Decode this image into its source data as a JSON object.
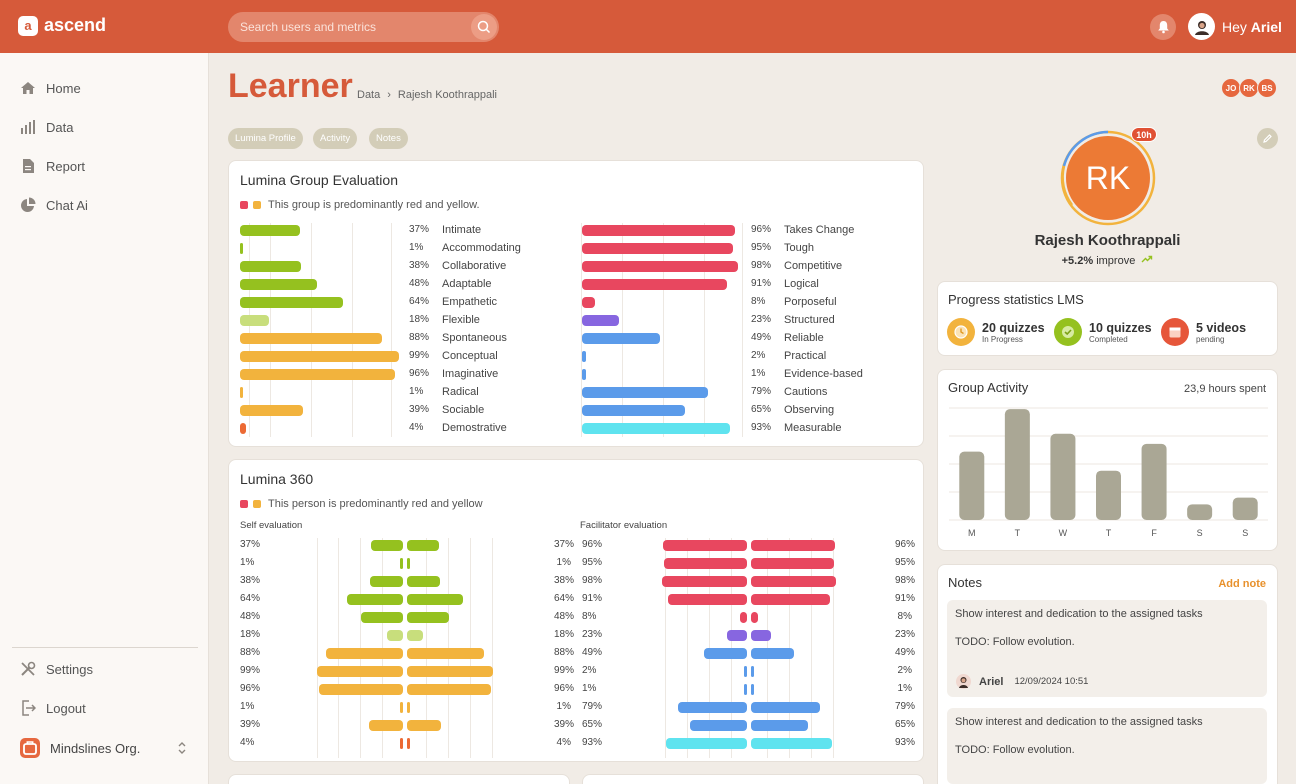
{
  "app": {
    "name": "ascend"
  },
  "search": {
    "placeholder": "Search users and metrics"
  },
  "header": {
    "greeting": "Hey",
    "user": "Ariel"
  },
  "nav": {
    "home": "Home",
    "data": "Data",
    "report": "Report",
    "chat": "Chat Ai",
    "settings": "Settings",
    "logout": "Logout",
    "org": "Mindslines Org."
  },
  "page": {
    "title": "Learner",
    "breadcrumb": [
      "Data",
      "Rajesh Koothrappali"
    ],
    "tabs": [
      "Lumina Profile",
      "Activity",
      "Notes"
    ],
    "collaborators": [
      "JO",
      "RK",
      "BS"
    ]
  },
  "colors": {
    "brand": "#d65a3a",
    "red": "#e8475f",
    "yellow": "#f2b33d",
    "green": "#95c11f",
    "blue": "#5b9bea",
    "purple": "#8766e0",
    "cyan": "#5fe3ef",
    "bar_gray": "#aaa795"
  },
  "group_eval": {
    "title": "Lumina Group Evaluation",
    "summary": "This group is predominantly red and yellow.",
    "left": [
      {
        "pct": 37,
        "label": "Intimate",
        "color": "green"
      },
      {
        "pct": 1,
        "label": "Accommodating",
        "color": "green"
      },
      {
        "pct": 38,
        "label": "Collaborative",
        "color": "green"
      },
      {
        "pct": 48,
        "label": "Adaptable",
        "color": "green"
      },
      {
        "pct": 64,
        "label": "Empathetic",
        "color": "green"
      },
      {
        "pct": 18,
        "label": "Flexible",
        "color": "lightgreen"
      },
      {
        "pct": 88,
        "label": "Spontaneous",
        "color": "yellow"
      },
      {
        "pct": 99,
        "label": "Conceptual",
        "color": "yellow"
      },
      {
        "pct": 96,
        "label": "Imaginative",
        "color": "yellow"
      },
      {
        "pct": 1,
        "label": "Radical",
        "color": "yellow"
      },
      {
        "pct": 39,
        "label": "Sociable",
        "color": "yellow"
      },
      {
        "pct": 4,
        "label": "Demostrative",
        "color": "orange"
      }
    ],
    "right": [
      {
        "pct": 96,
        "label": "Takes Change",
        "color": "red"
      },
      {
        "pct": 95,
        "label": "Tough",
        "color": "red"
      },
      {
        "pct": 98,
        "label": "Competitive",
        "color": "red"
      },
      {
        "pct": 91,
        "label": "Logical",
        "color": "red"
      },
      {
        "pct": 8,
        "label": "Porposeful",
        "color": "red"
      },
      {
        "pct": 23,
        "label": "Structured",
        "color": "purple"
      },
      {
        "pct": 49,
        "label": "Reliable",
        "color": "blue"
      },
      {
        "pct": 2,
        "label": "Practical",
        "color": "blue"
      },
      {
        "pct": 1,
        "label": "Evidence-based",
        "color": "blue"
      },
      {
        "pct": 79,
        "label": "Cautions",
        "color": "blue"
      },
      {
        "pct": 65,
        "label": "Observing",
        "color": "blue"
      },
      {
        "pct": 93,
        "label": "Measurable",
        "color": "cyan"
      }
    ]
  },
  "lumina360": {
    "title": "Lumina 360",
    "summary": "This person is predominantly red and yellow",
    "self_label": "Self evaluation",
    "facilitator_label": "Facilitator evaluation",
    "self": [
      37,
      1,
      38,
      64,
      48,
      18,
      88,
      99,
      96,
      1,
      39,
      4
    ],
    "self_colors": [
      "green",
      "green",
      "green",
      "green",
      "green",
      "lightgreen",
      "yellow",
      "yellow",
      "yellow",
      "yellow",
      "yellow",
      "orange"
    ],
    "facilitator": [
      96,
      95,
      98,
      91,
      8,
      23,
      49,
      2,
      1,
      79,
      65,
      93
    ],
    "facilitator_colors": [
      "red",
      "red",
      "red",
      "red",
      "red",
      "purple",
      "blue",
      "blue",
      "blue",
      "blue",
      "blue",
      "cyan"
    ]
  },
  "profile": {
    "initials": "RK",
    "name": "Rajesh Koothrappali",
    "badge": "10h",
    "improve_value": "+5.2%",
    "improve_label": "improve"
  },
  "lms": {
    "title": "Progress statistics LMS",
    "stats": [
      {
        "main": "20 quizzes",
        "sub": "In Progress",
        "icon": "clock-icon"
      },
      {
        "main": "10 quizzes",
        "sub": "Completed",
        "icon": "check-icon"
      },
      {
        "main": "5 videos",
        "sub": "pending",
        "icon": "calendar-icon"
      }
    ]
  },
  "activity": {
    "title": "Group Activity",
    "hours": "23,9 hours spent"
  },
  "chart_data": {
    "type": "bar",
    "categories": [
      "M",
      "T",
      "W",
      "T",
      "F",
      "S",
      "S"
    ],
    "values": [
      6.1,
      9.9,
      7.7,
      4.4,
      6.8,
      1.4,
      2.0
    ],
    "ylim": [
      0,
      10
    ],
    "grid": true,
    "legend": "none"
  },
  "notes": {
    "title": "Notes",
    "add": "Add note",
    "items": [
      {
        "text": "Show interest and dedication to the assigned tasks",
        "todo": "TODO: Follow evolution.",
        "author": "Ariel",
        "date": "12/09/2024 10:51"
      },
      {
        "text": "Show interest and dedication to the assigned tasks",
        "todo": "TODO: Follow evolution."
      }
    ]
  }
}
